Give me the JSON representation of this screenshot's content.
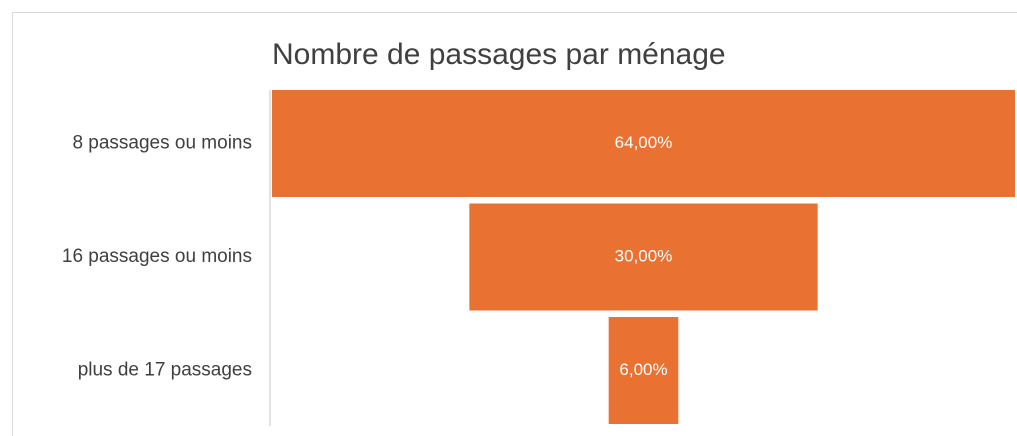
{
  "chart_data": {
    "type": "funnel",
    "title": "Nombre de passages par ménage",
    "categories": [
      "8 passages ou moins",
      "16 passages ou moins",
      "plus de 17 passages"
    ],
    "values": [
      64,
      30,
      6
    ],
    "value_labels": [
      "64,00%",
      "30,00%",
      "6,00%"
    ],
    "color": "#e97132"
  }
}
